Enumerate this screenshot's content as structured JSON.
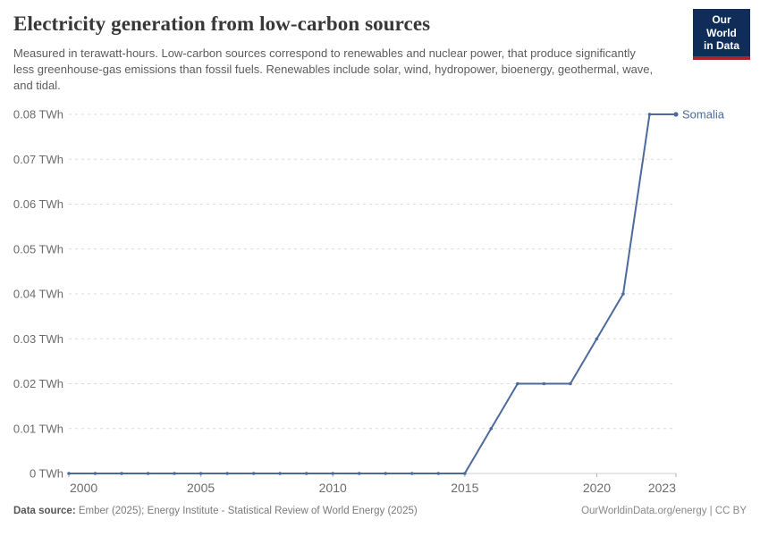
{
  "header": {
    "title": "Electricity generation from low-carbon sources",
    "subtitle": "Measured in terawatt-hours. Low-carbon sources correspond to renewables and nuclear power, that produce significantly less greenhouse-gas emissions than fossil fuels. Renewables include solar, wind, hydropower, bioenergy, geothermal, wave, and tidal.",
    "logo": {
      "line1": "Our World",
      "line2": "in Data",
      "bg_color": "#102d5a",
      "bar_color": "#a82429"
    }
  },
  "chart_data": {
    "type": "line",
    "title": "Electricity generation from low-carbon sources",
    "unit": "TWh",
    "xlim": [
      2000,
      2023
    ],
    "ylim": [
      0,
      0.08
    ],
    "grid": "horizontal-dashed",
    "legend_position": "end-of-line-label",
    "x": [
      2000,
      2001,
      2002,
      2003,
      2004,
      2005,
      2006,
      2007,
      2008,
      2009,
      2010,
      2011,
      2012,
      2013,
      2014,
      2015,
      2016,
      2017,
      2018,
      2019,
      2020,
      2021,
      2022,
      2023
    ],
    "series": [
      {
        "name": "Somalia",
        "color": "#4c6a9c",
        "values": [
          0,
          0,
          0,
          0,
          0,
          0,
          0,
          0,
          0,
          0,
          0,
          0,
          0,
          0,
          0,
          0,
          0.01,
          0.02,
          0.02,
          0.02,
          0.03,
          0.04,
          0.08,
          0.08
        ]
      }
    ],
    "xticks": [
      2000,
      2005,
      2010,
      2015,
      2020,
      2023
    ],
    "yticks": [
      0,
      0.01,
      0.02,
      0.03,
      0.04,
      0.05,
      0.06,
      0.07,
      0.08
    ],
    "ytick_labels": [
      "0 TWh",
      "0.01 TWh",
      "0.02 TWh",
      "0.03 TWh",
      "0.04 TWh",
      "0.05 TWh",
      "0.06 TWh",
      "0.07 TWh",
      "0.08 TWh"
    ],
    "colors": {
      "gridline": "#dcdcdc",
      "axis_line": "#cccccc",
      "tick": "#b3b3b3",
      "tick_label": "#6b6b6b"
    }
  },
  "footer": {
    "source_label": "Data source:",
    "source_text": "Ember (2025); Energy Institute - Statistical Review of World Energy (2025)",
    "link_text": "OurWorldinData.org/energy | CC BY"
  }
}
